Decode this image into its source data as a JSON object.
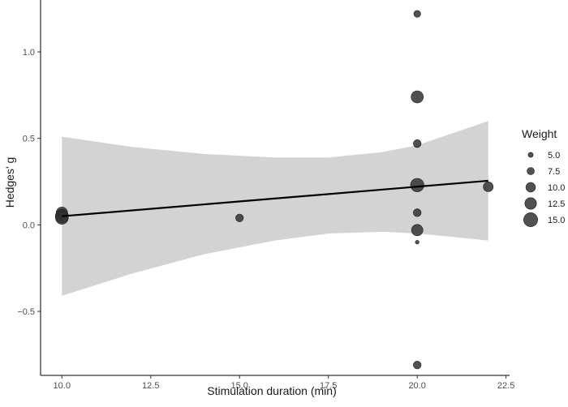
{
  "chart_data": {
    "type": "scatter",
    "title": "",
    "xlabel": "Stimulation duration (min)",
    "ylabel": "Hedges' g",
    "xlim": [
      9.4,
      22.6
    ],
    "ylim": [
      -0.87,
      1.3
    ],
    "x_ticks": [
      10.0,
      12.5,
      15.0,
      17.5,
      20.0,
      22.5
    ],
    "x_tick_labels": [
      "10.0",
      "12.5",
      "15.0",
      "17.5",
      "20.0",
      "22.5"
    ],
    "y_ticks": [
      -0.5,
      0.0,
      0.5,
      1.0
    ],
    "y_tick_labels": [
      "−0.5",
      "0.0",
      "0.5",
      "1.0"
    ],
    "grid": false,
    "points": [
      {
        "x": 10.0,
        "y": 0.07,
        "weight": 12.0
      },
      {
        "x": 10.0,
        "y": 0.06,
        "weight": 11.0
      },
      {
        "x": 10.0,
        "y": 0.05,
        "weight": 14.0
      },
      {
        "x": 10.0,
        "y": 0.04,
        "weight": 13.5
      },
      {
        "x": 15.0,
        "y": 0.04,
        "weight": 8.0
      },
      {
        "x": 20.0,
        "y": 1.22,
        "weight": 7.0
      },
      {
        "x": 20.0,
        "y": 0.74,
        "weight": 13.0
      },
      {
        "x": 20.0,
        "y": 0.47,
        "weight": 8.0
      },
      {
        "x": 20.0,
        "y": 0.23,
        "weight": 14.5
      },
      {
        "x": 20.0,
        "y": 0.07,
        "weight": 8.0
      },
      {
        "x": 20.0,
        "y": -0.03,
        "weight": 12.0
      },
      {
        "x": 20.0,
        "y": -0.1,
        "weight": 3.5
      },
      {
        "x": 20.0,
        "y": -0.81,
        "weight": 8.0
      },
      {
        "x": 22.0,
        "y": 0.22,
        "weight": 10.5
      }
    ],
    "regression": {
      "x0": 10.0,
      "y0": 0.05,
      "x1": 22.0,
      "y1": 0.255
    },
    "ci_band": [
      {
        "x": 10.0,
        "lo": -0.41,
        "hi": 0.51
      },
      {
        "x": 12.0,
        "lo": -0.28,
        "hi": 0.45
      },
      {
        "x": 14.0,
        "lo": -0.17,
        "hi": 0.41
      },
      {
        "x": 16.0,
        "lo": -0.09,
        "hi": 0.39
      },
      {
        "x": 17.5,
        "lo": -0.05,
        "hi": 0.39
      },
      {
        "x": 19.0,
        "lo": -0.04,
        "hi": 0.42
      },
      {
        "x": 20.0,
        "lo": -0.05,
        "hi": 0.46
      },
      {
        "x": 21.0,
        "lo": -0.07,
        "hi": 0.53
      },
      {
        "x": 22.0,
        "lo": -0.09,
        "hi": 0.6
      }
    ],
    "legend": {
      "title": "Weight",
      "position": "right",
      "entries": [
        {
          "label": "5.0",
          "weight": 5.0
        },
        {
          "label": "7.5",
          "weight": 7.5
        },
        {
          "label": "10.0",
          "weight": 10.0
        },
        {
          "label": "12.5",
          "weight": 12.5
        },
        {
          "label": "15.0",
          "weight": 15.0
        }
      ]
    },
    "colors": {
      "point": "#333333",
      "ci": "#d3d3d3",
      "line": "#000000"
    }
  }
}
